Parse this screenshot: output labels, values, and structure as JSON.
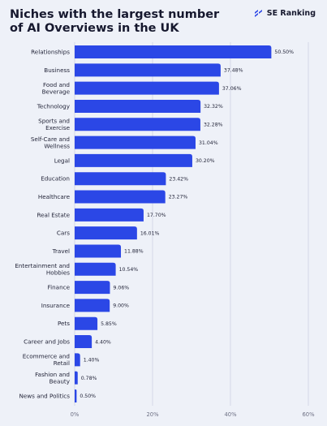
{
  "header": {
    "title_line1": "Niches with the largest number",
    "title_line2": "of AI Overviews in the UK",
    "brand_name": "SE Ranking",
    "brand_icon": "se-ranking-logo-icon"
  },
  "colors": {
    "bar": "#2b47e6",
    "background": "#eef1f8",
    "grid": "#cdd2e2",
    "text": "#24263a"
  },
  "chart_data": {
    "type": "bar",
    "orientation": "horizontal",
    "categories": [
      [
        "Relationships"
      ],
      [
        "Business"
      ],
      [
        "Food and",
        "Beverage"
      ],
      [
        "Technology"
      ],
      [
        "Sports and",
        "Exercise"
      ],
      [
        "Self-Care and",
        "Wellness"
      ],
      [
        "Legal"
      ],
      [
        "Education"
      ],
      [
        "Healthcare"
      ],
      [
        "Real Estate"
      ],
      [
        "Cars"
      ],
      [
        "Travel"
      ],
      [
        "Entertainment and",
        "Hobbies"
      ],
      [
        "Finance"
      ],
      [
        "Insurance"
      ],
      [
        "Pets"
      ],
      [
        "Career and Jobs"
      ],
      [
        "Ecommerce and",
        "Retail"
      ],
      [
        "Fashion and",
        "Beauty"
      ],
      [
        "News and Politics"
      ]
    ],
    "values": [
      50.5,
      37.48,
      37.06,
      32.32,
      32.28,
      31.04,
      30.2,
      23.42,
      23.27,
      17.7,
      16.01,
      11.88,
      10.54,
      9.06,
      9.0,
      5.85,
      4.4,
      1.4,
      0.78,
      0.5
    ],
    "value_labels": [
      "50.50%",
      "37.48%",
      "37.06%",
      "32.32%",
      "32.28%",
      "31.04%",
      "30.20%",
      "23.42%",
      "23.27%",
      "17.70%",
      "16.01%",
      "11.88%",
      "10.54%",
      "9.06%",
      "9.00%",
      "5.85%",
      "4.40%",
      "1.40%",
      "0.78%",
      "0.50%"
    ],
    "x_ticks": [
      0,
      20,
      40,
      60
    ],
    "x_tick_labels": [
      "0%",
      "20%",
      "40%",
      "60%"
    ],
    "xlim": [
      0,
      60
    ],
    "grid": true,
    "title": "Niches with the largest number of AI Overviews in the UK",
    "xlabel": "",
    "ylabel": ""
  }
}
